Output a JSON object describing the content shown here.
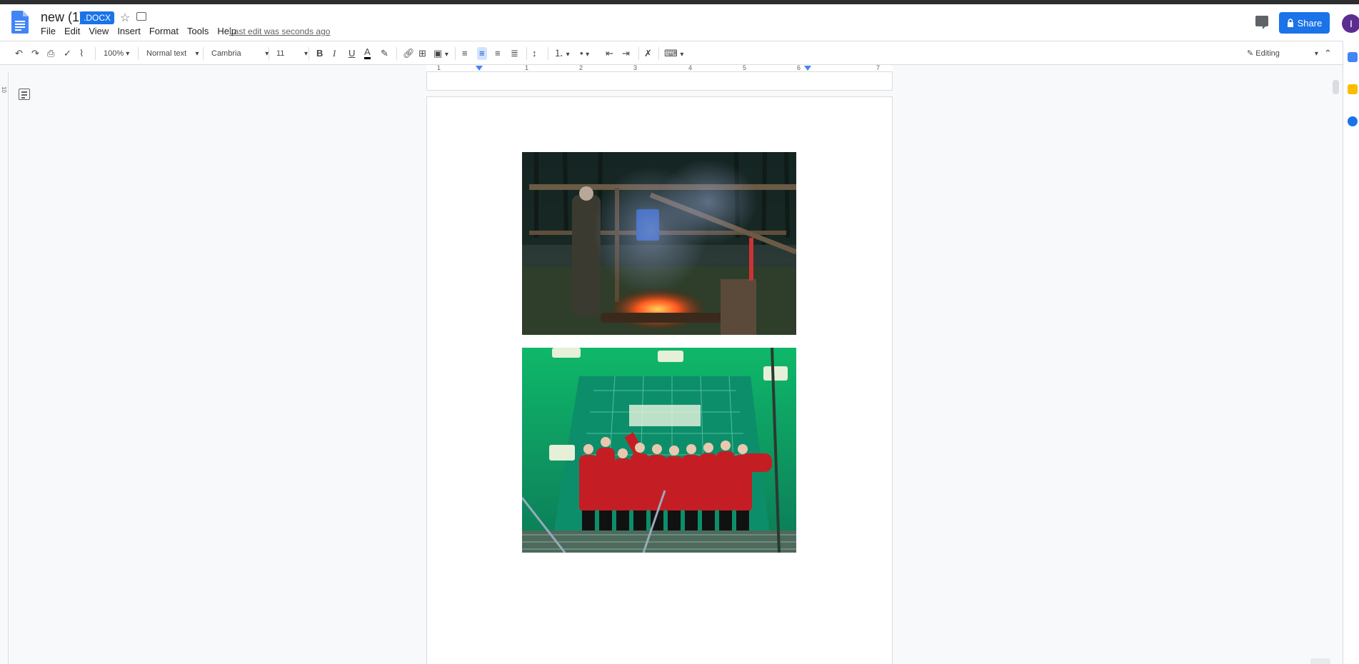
{
  "header": {
    "doc_title": "new (1)",
    "badge": ".DOCX",
    "last_edit": "Last edit was seconds ago",
    "share_label": "Share",
    "avatar_letter": "I"
  },
  "menu": [
    "File",
    "Edit",
    "View",
    "Insert",
    "Format",
    "Tools",
    "Help"
  ],
  "toolbar": {
    "zoom": "100%",
    "style": "Normal text",
    "font": "Cambria",
    "size": "11",
    "bold": "B",
    "italic": "I",
    "underline": "U",
    "text_color_letter": "A",
    "mode": "Editing"
  },
  "ruler": {
    "numbers": [
      "1",
      "1",
      "2",
      "3",
      "4",
      "5",
      "6",
      "7"
    ]
  },
  "left_ruler_number": "10",
  "colors": {
    "accent": "#1a73e8",
    "avatar": "#5c2d91"
  },
  "images": [
    {
      "name": "campfire-photo"
    },
    {
      "name": "group-photo-stadium"
    }
  ]
}
